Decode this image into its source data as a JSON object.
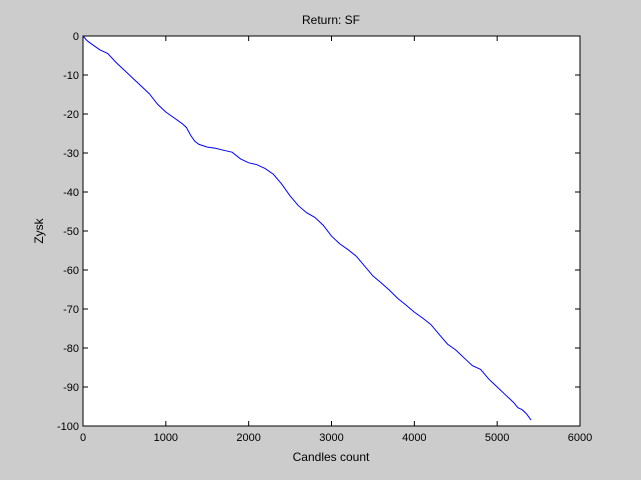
{
  "chart_data": {
    "type": "line",
    "title": "Return: SF",
    "xlabel": "Candles count",
    "ylabel": "Zysk",
    "xlim": [
      0,
      6000
    ],
    "ylim": [
      -100,
      0
    ],
    "xticks": [
      0,
      1000,
      2000,
      3000,
      4000,
      5000,
      6000
    ],
    "yticks": [
      0,
      -10,
      -20,
      -30,
      -40,
      -50,
      -60,
      -70,
      -80,
      -90,
      -100
    ],
    "grid": false,
    "legend": "none",
    "colors": {
      "line": "#0000ff",
      "background": "#ffffff",
      "figure": "#cccccc",
      "axes": "#000000"
    },
    "series": [
      {
        "x": [
          0,
          50,
          100,
          200,
          300,
          400,
          500,
          600,
          700,
          800,
          900,
          1000,
          1100,
          1200,
          1250,
          1300,
          1350,
          1400,
          1500,
          1600,
          1700,
          1800,
          1900,
          2000,
          2100,
          2200,
          2300,
          2400,
          2500,
          2600,
          2700,
          2800,
          2900,
          3000,
          3100,
          3200,
          3300,
          3400,
          3500,
          3600,
          3700,
          3800,
          3900,
          4000,
          4100,
          4200,
          4300,
          4400,
          4500,
          4600,
          4700,
          4800,
          4900,
          5000,
          5100,
          5200,
          5250,
          5300,
          5350,
          5410
        ],
        "y": [
          0,
          -1.2,
          -2,
          -3.5,
          -4.5,
          -6.8,
          -8.8,
          -10.8,
          -12.8,
          -14.8,
          -17.5,
          -19.5,
          -21,
          -22.5,
          -23.5,
          -25.5,
          -27,
          -27.8,
          -28.5,
          -28.8,
          -29.3,
          -29.8,
          -31.5,
          -32.5,
          -33,
          -34,
          -35.5,
          -38,
          -41,
          -43.5,
          -45.3,
          -46.5,
          -48.5,
          -51.3,
          -53.3,
          -54.8,
          -56.5,
          -59,
          -61.5,
          -63.3,
          -65.2,
          -67.3,
          -69,
          -70.8,
          -72.3,
          -74,
          -76.5,
          -79,
          -80.5,
          -82.5,
          -84.5,
          -85.5,
          -88,
          -90,
          -92,
          -94,
          -95.3,
          -95.8,
          -96.8,
          -98.5
        ]
      }
    ]
  }
}
